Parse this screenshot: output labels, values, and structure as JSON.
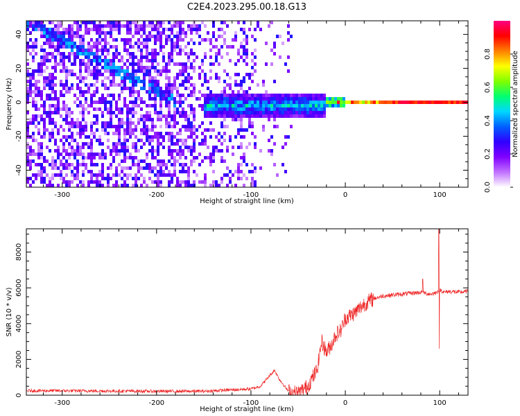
{
  "figure": {
    "title": "C2E4.2023.295.00.18.G13"
  },
  "chart_data": [
    {
      "type": "heatmap",
      "name": "spectrogram",
      "xlabel": "Height of straight line (km)",
      "ylabel": "Frequency (Hz)",
      "xlim": [
        -338,
        130
      ],
      "ylim": [
        -50,
        48
      ],
      "x_ticks": [
        -300,
        -200,
        -100,
        0,
        100
      ],
      "y_ticks": [
        -40,
        -20,
        0,
        20,
        40
      ],
      "colorbar": {
        "label": "Normalized spectral amplitude",
        "range": [
          0,
          1
        ],
        "ticks": [
          0.0,
          0.2,
          0.4,
          0.6,
          0.8
        ],
        "colors": [
          "#ffffff",
          "#c070ff",
          "#8000ff",
          "#3000ff",
          "#0060ff",
          "#00d8ff",
          "#00ff70",
          "#80ff00",
          "#ffff00",
          "#ff8000",
          "#ff0000",
          "#ff0080"
        ]
      },
      "features": {
        "carrier_line": {
          "x_start": -150,
          "x_end": 130,
          "frequency": 0
        },
        "descending_trace": {
          "x_start": -338,
          "x_end": -180,
          "f_start": 48,
          "f_end": 0
        }
      }
    },
    {
      "type": "line",
      "name": "snr",
      "xlabel": "Height of straight line (km)",
      "ylabel": "SNR (10 * v/v)",
      "xlim": [
        -338,
        130
      ],
      "ylim": [
        0,
        9300
      ],
      "x_ticks": [
        -300,
        -200,
        -100,
        0,
        100
      ],
      "y_ticks": [
        0,
        2000,
        4000,
        6000,
        8000
      ],
      "color": "#ee2222",
      "envelope": {
        "x": [
          -338,
          -300,
          -200,
          -150,
          -120,
          -100,
          -90,
          -80,
          -75,
          -70,
          -60,
          -50,
          -40,
          -30,
          -25,
          -20,
          -15,
          -10,
          -5,
          0,
          10,
          20,
          30,
          40,
          50,
          60,
          70,
          80,
          90,
          95,
          100,
          105,
          110,
          120,
          130
        ],
        "y": [
          250,
          250,
          220,
          220,
          300,
          350,
          500,
          1100,
          1400,
          900,
          200,
          100,
          500,
          1400,
          3000,
          2400,
          2800,
          3400,
          3600,
          4300,
          4600,
          5100,
          5400,
          5550,
          5600,
          5650,
          5700,
          5750,
          5650,
          5700,
          5900,
          5750,
          5800,
          5750,
          5800
        ]
      },
      "spikes": [
        {
          "x": 99,
          "y": 9300
        },
        {
          "x": 99.6,
          "y": 2600
        },
        {
          "x": 82,
          "y": 6500
        }
      ]
    }
  ]
}
